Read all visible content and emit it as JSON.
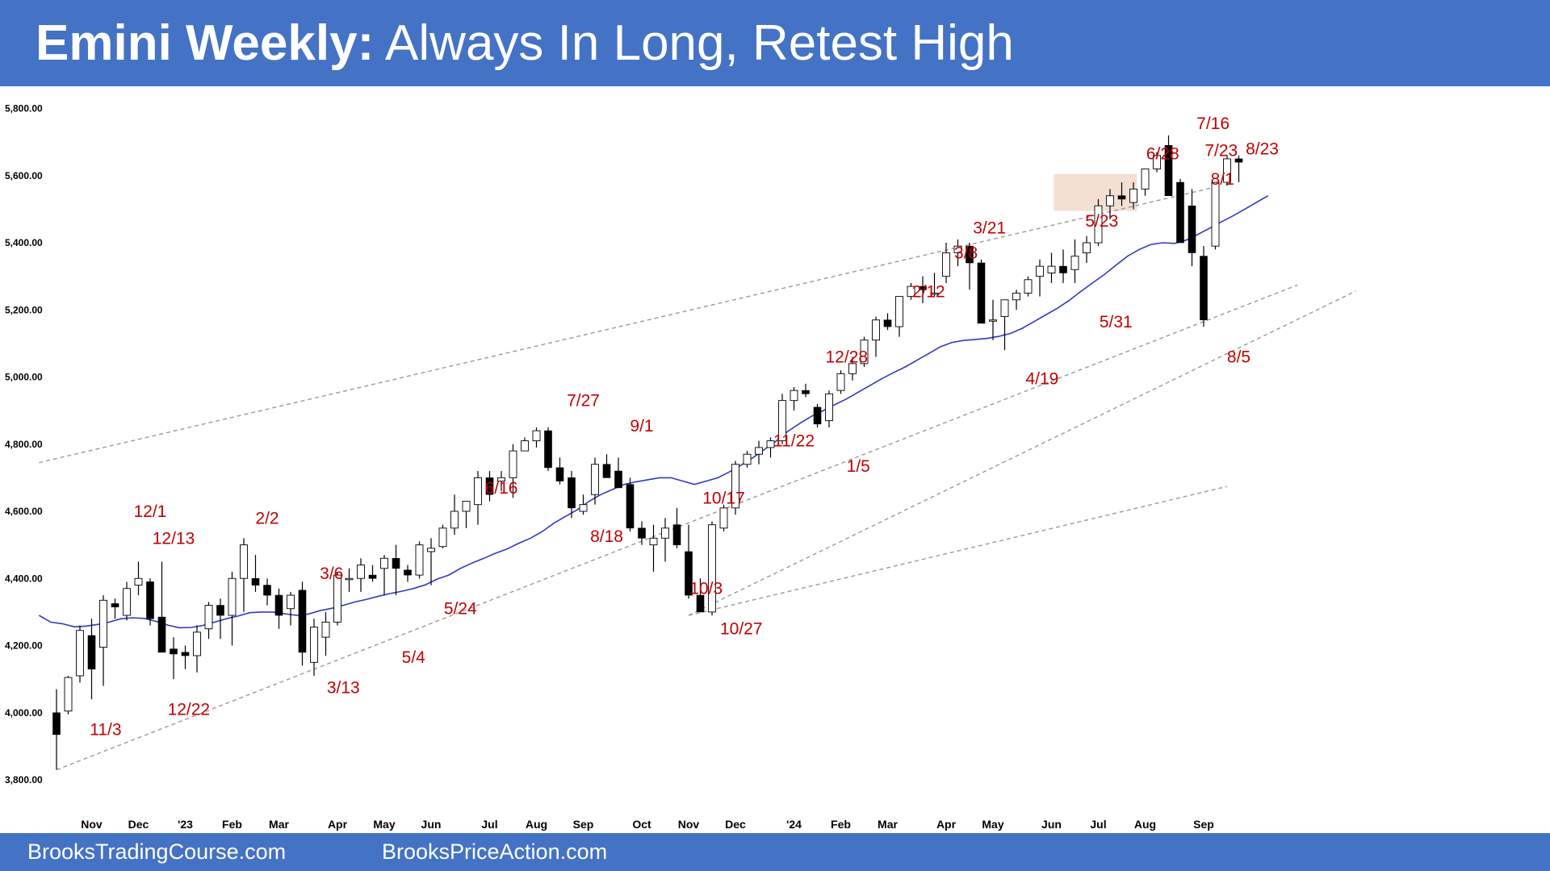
{
  "header": {
    "title_bold": "Emini Weekly:",
    "title_rest": " Always In Long, Retest High",
    "background": "#4472c4"
  },
  "footer": {
    "left": "BrooksTradingCourse.com",
    "right": "BrooksPriceAction.com"
  },
  "chart_data": {
    "type": "candlestick",
    "title": "Emini Weekly: Always In Long, Retest High",
    "ylim": [
      3780,
      5860
    ],
    "y_ticks": [
      {
        "value": 3800,
        "label": "3,800.00"
      },
      {
        "value": 4000,
        "label": "4,000.00"
      },
      {
        "value": 4200,
        "label": "4,200.00"
      },
      {
        "value": 4400,
        "label": "4,400.00"
      },
      {
        "value": 4600,
        "label": "4,600.00"
      },
      {
        "value": 4800,
        "label": "4,800.00"
      },
      {
        "value": 5000,
        "label": "5,000.00"
      },
      {
        "value": 5200,
        "label": "5,200.00"
      },
      {
        "value": 5400,
        "label": "5,400.00"
      },
      {
        "value": 5600,
        "label": "5,600.00"
      },
      {
        "value": 5800,
        "label": "5,800.00"
      }
    ],
    "x_ticks": [
      {
        "bar": 3,
        "label": "Nov"
      },
      {
        "bar": 7,
        "label": "Dec"
      },
      {
        "bar": 11,
        "label": "'23"
      },
      {
        "bar": 15,
        "label": "Feb"
      },
      {
        "bar": 19,
        "label": "Mar"
      },
      {
        "bar": 24,
        "label": "Apr"
      },
      {
        "bar": 28,
        "label": "May"
      },
      {
        "bar": 32,
        "label": "Jun"
      },
      {
        "bar": 37,
        "label": "Jul"
      },
      {
        "bar": 41,
        "label": "Aug"
      },
      {
        "bar": 45,
        "label": "Sep"
      },
      {
        "bar": 50,
        "label": "Oct"
      },
      {
        "bar": 54,
        "label": "Nov"
      },
      {
        "bar": 58,
        "label": "Dec"
      },
      {
        "bar": 63,
        "label": "'24"
      },
      {
        "bar": 67,
        "label": "Feb"
      },
      {
        "bar": 71,
        "label": "Mar"
      },
      {
        "bar": 76,
        "label": "Apr"
      },
      {
        "bar": 80,
        "label": "May"
      },
      {
        "bar": 85,
        "label": "Jun"
      },
      {
        "bar": 89,
        "label": "Jul"
      },
      {
        "bar": 93,
        "label": "Aug"
      },
      {
        "bar": 98,
        "label": "Sep"
      }
    ],
    "bars": [
      [
        4000,
        4070,
        3830,
        3935
      ],
      [
        4005,
        4110,
        3995,
        4105
      ],
      [
        4110,
        4260,
        4090,
        4245
      ],
      [
        4230,
        4280,
        4040,
        4130
      ],
      [
        4195,
        4350,
        4080,
        4335
      ],
      [
        4325,
        4340,
        4280,
        4315
      ],
      [
        4290,
        4390,
        4275,
        4370
      ],
      [
        4380,
        4450,
        4350,
        4400
      ],
      [
        4390,
        4400,
        4260,
        4280
      ],
      [
        4285,
        4450,
        4180,
        4180
      ],
      [
        4190,
        4225,
        4100,
        4175
      ],
      [
        4180,
        4200,
        4130,
        4170
      ],
      [
        4170,
        4260,
        4120,
        4240
      ],
      [
        4250,
        4330,
        4220,
        4320
      ],
      [
        4320,
        4340,
        4220,
        4290
      ],
      [
        4290,
        4420,
        4200,
        4400
      ],
      [
        4400,
        4520,
        4300,
        4500
      ],
      [
        4400,
        4470,
        4360,
        4380
      ],
      [
        4380,
        4400,
        4320,
        4350
      ],
      [
        4350,
        4370,
        4250,
        4290
      ],
      [
        4310,
        4360,
        4260,
        4350
      ],
      [
        4365,
        4390,
        4140,
        4180
      ],
      [
        4150,
        4280,
        4110,
        4255
      ],
      [
        4225,
        4300,
        4170,
        4270
      ],
      [
        4270,
        4420,
        4260,
        4410
      ],
      [
        4400,
        4430,
        4360,
        4400
      ],
      [
        4400,
        4460,
        4360,
        4440
      ],
      [
        4410,
        4440,
        4390,
        4400
      ],
      [
        4430,
        4470,
        4350,
        4460
      ],
      [
        4460,
        4500,
        4350,
        4430
      ],
      [
        4425,
        4440,
        4390,
        4410
      ],
      [
        4410,
        4510,
        4400,
        4500
      ],
      [
        4480,
        4520,
        4380,
        4490
      ],
      [
        4495,
        4560,
        4490,
        4550
      ],
      [
        4550,
        4650,
        4530,
        4600
      ],
      [
        4600,
        4630,
        4550,
        4630
      ],
      [
        4620,
        4720,
        4560,
        4700
      ],
      [
        4700,
        4720,
        4630,
        4650
      ],
      [
        4690,
        4720,
        4660,
        4700
      ],
      [
        4700,
        4800,
        4640,
        4780
      ],
      [
        4780,
        4820,
        4780,
        4810
      ],
      [
        4810,
        4850,
        4790,
        4840
      ],
      [
        4840,
        4850,
        4720,
        4730
      ],
      [
        4730,
        4760,
        4680,
        4690
      ],
      [
        4700,
        4720,
        4580,
        4610
      ],
      [
        4600,
        4650,
        4590,
        4620
      ],
      [
        4650,
        4760,
        4620,
        4740
      ],
      [
        4740,
        4770,
        4700,
        4700
      ],
      [
        4720,
        4760,
        4670,
        4670
      ],
      [
        4680,
        4700,
        4540,
        4550
      ],
      [
        4550,
        4570,
        4500,
        4520
      ],
      [
        4500,
        4560,
        4420,
        4520
      ],
      [
        4520,
        4580,
        4450,
        4550
      ],
      [
        4560,
        4610,
        4490,
        4500
      ],
      [
        4480,
        4560,
        4340,
        4350
      ],
      [
        4350,
        4400,
        4300,
        4300
      ],
      [
        4300,
        4570,
        4290,
        4560
      ],
      [
        4550,
        4620,
        4540,
        4610
      ],
      [
        4610,
        4750,
        4590,
        4740
      ],
      [
        4740,
        4780,
        4730,
        4770
      ],
      [
        4770,
        4810,
        4740,
        4790
      ],
      [
        4790,
        4820,
        4760,
        4810
      ],
      [
        4810,
        4950,
        4800,
        4930
      ],
      [
        4930,
        4970,
        4900,
        4960
      ],
      [
        4960,
        4980,
        4940,
        4950
      ],
      [
        4910,
        4920,
        4850,
        4860
      ],
      [
        4870,
        4960,
        4850,
        4950
      ],
      [
        4960,
        5020,
        4950,
        5010
      ],
      [
        5010,
        5060,
        4990,
        5040
      ],
      [
        5040,
        5120,
        5030,
        5110
      ],
      [
        5110,
        5180,
        5060,
        5170
      ],
      [
        5170,
        5190,
        5140,
        5150
      ],
      [
        5150,
        5240,
        5120,
        5240
      ],
      [
        5240,
        5280,
        5230,
        5270
      ],
      [
        5270,
        5300,
        5220,
        5260
      ],
      [
        5250,
        5310,
        5240,
        5250
      ],
      [
        5300,
        5400,
        5280,
        5370
      ],
      [
        5370,
        5410,
        5330,
        5390
      ],
      [
        5390,
        5400,
        5260,
        5340
      ],
      [
        5340,
        5350,
        5160,
        5160
      ],
      [
        5170,
        5230,
        5110,
        5170
      ],
      [
        5180,
        5230,
        5080,
        5230
      ],
      [
        5230,
        5260,
        5200,
        5250
      ],
      [
        5250,
        5300,
        5240,
        5290
      ],
      [
        5300,
        5350,
        5240,
        5330
      ],
      [
        5310,
        5370,
        5280,
        5330
      ],
      [
        5330,
        5380,
        5280,
        5310
      ],
      [
        5320,
        5410,
        5280,
        5360
      ],
      [
        5370,
        5420,
        5340,
        5400
      ],
      [
        5400,
        5530,
        5390,
        5510
      ],
      [
        5510,
        5560,
        5470,
        5540
      ],
      [
        5540,
        5580,
        5510,
        5530
      ],
      [
        5520,
        5580,
        5500,
        5560
      ],
      [
        5560,
        5620,
        5540,
        5620
      ],
      [
        5620,
        5670,
        5610,
        5660
      ],
      [
        5690,
        5720,
        5540,
        5540
      ],
      [
        5580,
        5590,
        5420,
        5400
      ],
      [
        5510,
        5560,
        5330,
        5370
      ],
      [
        5360,
        5390,
        5150,
        5170
      ],
      [
        5390,
        5580,
        5380,
        5580
      ],
      [
        5580,
        5660,
        5570,
        5650
      ],
      [
        5650,
        5660,
        5580,
        5640
      ]
    ],
    "series": [
      {
        "name": "",
        "type": "line",
        "color": "#2e3bbf",
        "values": [
          4290,
          4270,
          4265,
          4256,
          4258,
          4263,
          4270,
          4280,
          4283,
          4281,
          4272,
          4261,
          4253,
          4254,
          4260,
          4270,
          4280,
          4288,
          4298,
          4300,
          4300,
          4295,
          4290,
          4294,
          4304,
          4311,
          4320,
          4330,
          4338,
          4347,
          4355,
          4362,
          4370,
          4381,
          4398,
          4410,
          4430,
          4446,
          4460,
          4475,
          4488,
          4505,
          4520,
          4540,
          4565,
          4585,
          4605,
          4630,
          4650,
          4665,
          4680,
          4688,
          4694,
          4700,
          4700,
          4690,
          4680,
          4690,
          4700,
          4718,
          4738,
          4760,
          4785,
          4810,
          4839,
          4862,
          4883,
          4900,
          4918,
          4935,
          4955,
          4975,
          4995,
          5013,
          5030,
          5050,
          5070,
          5090,
          5103,
          5109,
          5112,
          5115,
          5121,
          5130,
          5145,
          5165,
          5185,
          5205,
          5228,
          5255,
          5280,
          5305,
          5333,
          5360,
          5380,
          5395,
          5400,
          5398,
          5408,
          5425,
          5443,
          5462,
          5480,
          5500,
          5520,
          5540
        ]
      }
    ],
    "trendlines": [
      {
        "style": "dashed",
        "x0": -1.5,
        "y0": 4745,
        "x1": 99,
        "y1": 5566
      },
      {
        "style": "dashed",
        "x0": 0,
        "y0": 3830,
        "x1": 106,
        "y1": 5274
      },
      {
        "style": "dashed",
        "x0": 54,
        "y0": 4290,
        "x1": 100,
        "y1": 4674
      },
      {
        "style": "dashed",
        "x0": 54,
        "y0": 4290,
        "x1": 111,
        "y1": 5256
      }
    ],
    "highlight_box": {
      "x0": 85.2,
      "x1": 92.3,
      "y0": 5495,
      "y1": 5605,
      "color": "#f3e0d2"
    },
    "annotations": [
      {
        "text": "11/3",
        "bar": 4.2,
        "price": 3950
      },
      {
        "text": "12/1",
        "bar": 8,
        "price": 4600
      },
      {
        "text": "12/13",
        "bar": 10,
        "price": 4520
      },
      {
        "text": "12/22",
        "bar": 11.3,
        "price": 4010
      },
      {
        "text": "2/2",
        "bar": 18,
        "price": 4580
      },
      {
        "text": "3/6",
        "bar": 23.5,
        "price": 4415
      },
      {
        "text": "3/13",
        "bar": 24.5,
        "price": 4075
      },
      {
        "text": "5/4",
        "bar": 30.5,
        "price": 4165
      },
      {
        "text": "5/24",
        "bar": 34.5,
        "price": 4310
      },
      {
        "text": "6/16",
        "bar": 38,
        "price": 4670
      },
      {
        "text": "7/27",
        "bar": 45,
        "price": 4930
      },
      {
        "text": "8/18",
        "bar": 47,
        "price": 4525
      },
      {
        "text": "9/1",
        "bar": 50,
        "price": 4855
      },
      {
        "text": "10/17",
        "bar": 57,
        "price": 4640
      },
      {
        "text": "10/3",
        "bar": 55.5,
        "price": 4370
      },
      {
        "text": "10/27",
        "bar": 58.5,
        "price": 4250
      },
      {
        "text": "11/22",
        "bar": 63,
        "price": 4810
      },
      {
        "text": "12/28",
        "bar": 67.5,
        "price": 5060
      },
      {
        "text": "1/5",
        "bar": 68.5,
        "price": 4735
      },
      {
        "text": "2/12",
        "bar": 74.5,
        "price": 5255
      },
      {
        "text": "3/8",
        "bar": 77.7,
        "price": 5370
      },
      {
        "text": "3/21",
        "bar": 79.7,
        "price": 5445
      },
      {
        "text": "4/19",
        "bar": 84.2,
        "price": 4995
      },
      {
        "text": "5/23",
        "bar": 89.3,
        "price": 5465
      },
      {
        "text": "5/31",
        "bar": 90.5,
        "price": 5165
      },
      {
        "text": "6/28",
        "bar": 94.5,
        "price": 5665
      },
      {
        "text": "7/16",
        "bar": 98.8,
        "price": 5755
      },
      {
        "text": "7/23",
        "bar": 99.5,
        "price": 5675
      },
      {
        "text": "8/1",
        "bar": 99.6,
        "price": 5590
      },
      {
        "text": "8/5",
        "bar": 101,
        "price": 5060
      },
      {
        "text": "8/23",
        "bar": 103,
        "price": 5680
      }
    ],
    "colors": {
      "bull_body": "#ffffff",
      "bear_body": "#000000",
      "annotation": "#c00000",
      "trendline": "#999999"
    }
  }
}
